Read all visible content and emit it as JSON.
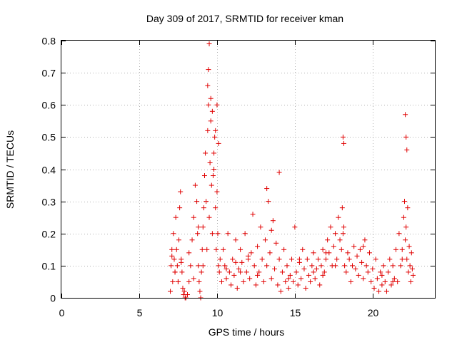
{
  "chart_data": {
    "type": "scatter",
    "title": "Day 309 of 2017, SRMTID for receiver kman",
    "xlabel": "GPS time / hours",
    "ylabel": "SRMTID / TECUs",
    "xlim": [
      0,
      24
    ],
    "ylim": [
      0,
      0.8
    ],
    "xticks": [
      0,
      5,
      10,
      15,
      20
    ],
    "yticks": [
      0,
      0.1,
      0.2,
      0.3,
      0.4,
      0.5,
      0.6,
      0.7,
      0.8
    ],
    "xtick_labels": [
      "0",
      "5",
      "10",
      "15",
      "20"
    ],
    "ytick_labels": [
      "0",
      "0.1",
      "0.2",
      "0.3",
      "0.4",
      "0.5",
      "0.6",
      "0.7",
      "0.8"
    ],
    "grid": true,
    "marker": "+",
    "color": "#e00000",
    "series": [
      {
        "name": "SRMTID",
        "x": [
          7.0,
          7.05,
          7.1,
          7.15,
          7.2,
          7.25,
          7.3,
          7.35,
          7.4,
          7.45,
          7.5,
          7.55,
          7.6,
          7.65,
          7.7,
          7.75,
          7.8,
          7.85,
          7.9,
          7.95,
          8.0,
          8.1,
          8.2,
          8.3,
          8.4,
          8.5,
          8.6,
          8.7,
          8.75,
          8.8,
          8.85,
          8.9,
          8.95,
          9.0,
          9.05,
          9.1,
          9.15,
          9.2,
          9.25,
          9.3,
          9.35,
          9.4,
          9.45,
          9.5,
          9.55,
          9.6,
          9.65,
          9.7,
          9.75,
          9.8,
          9.85,
          9.9,
          9.95,
          10.0,
          10.05,
          10.1,
          10.15,
          10.2,
          10.3,
          10.4,
          10.5,
          10.6,
          10.7,
          10.8,
          10.9,
          11.0,
          11.1,
          11.2,
          11.3,
          11.4,
          11.5,
          11.6,
          11.7,
          11.8,
          11.9,
          12.0,
          12.1,
          12.2,
          12.3,
          12.4,
          12.5,
          12.6,
          12.7,
          12.8,
          12.9,
          13.0,
          13.1,
          13.2,
          13.3,
          13.4,
          13.5,
          13.6,
          13.7,
          13.8,
          13.9,
          14.0,
          14.1,
          14.2,
          14.3,
          14.4,
          14.5,
          14.6,
          14.7,
          14.8,
          14.9,
          15.0,
          15.1,
          15.2,
          15.3,
          15.4,
          15.5,
          15.6,
          15.7,
          15.8,
          15.9,
          16.0,
          16.1,
          16.2,
          16.3,
          16.4,
          16.5,
          16.6,
          16.7,
          16.8,
          16.9,
          17.0,
          17.1,
          17.2,
          17.3,
          17.4,
          17.5,
          17.6,
          17.7,
          17.8,
          17.9,
          18.0,
          18.05,
          18.1,
          18.15,
          18.2,
          18.3,
          18.4,
          18.5,
          18.6,
          18.7,
          18.8,
          18.9,
          19.0,
          19.1,
          19.2,
          19.3,
          19.4,
          19.5,
          19.6,
          19.7,
          19.8,
          19.9,
          20.0,
          20.1,
          20.2,
          20.3,
          20.4,
          20.5,
          20.6,
          20.7,
          20.8,
          20.9,
          21.0,
          21.1,
          21.2,
          21.3,
          21.4,
          21.5,
          21.6,
          21.7,
          21.8,
          21.9,
          22.0,
          22.05,
          22.1,
          22.15,
          22.2,
          22.25,
          22.3,
          22.35,
          22.4,
          22.45,
          22.5,
          22.55,
          22.6,
          7.1,
          7.3,
          7.5,
          7.7,
          9.4,
          9.45,
          9.5,
          9.6,
          9.7,
          9.8,
          9.9,
          10.0,
          10.1,
          13.2,
          14.0,
          18.1,
          18.15,
          22.1,
          22.15,
          22.2,
          8.2,
          8.5,
          8.8,
          9.1,
          11.5,
          12.0,
          12.6,
          13.5,
          14.6,
          15.3,
          16.2,
          17.0,
          17.6,
          19.4,
          20.6,
          21.3,
          21.9,
          10.6,
          11.2,
          16.8
        ],
        "y": [
          0.02,
          0.1,
          0.15,
          0.05,
          0.2,
          0.12,
          0.08,
          0.25,
          0.15,
          0.1,
          0.05,
          0.18,
          0.28,
          0.33,
          0.12,
          0.08,
          0.03,
          0.01,
          0.02,
          0.0,
          0.0,
          0.01,
          0.05,
          0.1,
          0.18,
          0.25,
          0.35,
          0.3,
          0.2,
          0.1,
          0.05,
          0.02,
          0.0,
          0.08,
          0.15,
          0.22,
          0.28,
          0.38,
          0.45,
          0.3,
          0.15,
          0.52,
          0.6,
          0.25,
          0.42,
          0.55,
          0.35,
          0.2,
          0.38,
          0.45,
          0.5,
          0.28,
          0.15,
          0.33,
          0.2,
          0.1,
          0.08,
          0.12,
          0.05,
          0.15,
          0.1,
          0.06,
          0.2,
          0.08,
          0.04,
          0.12,
          0.07,
          0.18,
          0.03,
          0.09,
          0.15,
          0.11,
          0.05,
          0.2,
          0.08,
          0.12,
          0.06,
          0.14,
          0.26,
          0.1,
          0.04,
          0.16,
          0.08,
          0.22,
          0.12,
          0.05,
          0.18,
          0.1,
          0.3,
          0.14,
          0.06,
          0.24,
          0.09,
          0.17,
          0.04,
          0.12,
          0.02,
          0.08,
          0.15,
          0.05,
          0.1,
          0.03,
          0.07,
          0.12,
          0.05,
          0.22,
          0.08,
          0.04,
          0.11,
          0.06,
          0.15,
          0.09,
          0.03,
          0.12,
          0.07,
          0.05,
          0.1,
          0.14,
          0.06,
          0.09,
          0.12,
          0.04,
          0.1,
          0.15,
          0.08,
          0.12,
          0.18,
          0.14,
          0.22,
          0.1,
          0.16,
          0.2,
          0.12,
          0.25,
          0.18,
          0.15,
          0.28,
          0.2,
          0.22,
          0.1,
          0.08,
          0.14,
          0.12,
          0.05,
          0.1,
          0.16,
          0.09,
          0.13,
          0.07,
          0.15,
          0.11,
          0.06,
          0.18,
          0.1,
          0.08,
          0.14,
          0.05,
          0.09,
          0.03,
          0.12,
          0.06,
          0.02,
          0.08,
          0.04,
          0.1,
          0.05,
          0.02,
          0.08,
          0.12,
          0.04,
          0.1,
          0.06,
          0.15,
          0.05,
          0.2,
          0.1,
          0.15,
          0.25,
          0.3,
          0.18,
          0.22,
          0.12,
          0.28,
          0.08,
          0.16,
          0.1,
          0.05,
          0.14,
          0.09,
          0.07,
          0.13,
          0.08,
          0.05,
          0.11,
          0.66,
          0.71,
          0.79,
          0.62,
          0.58,
          0.4,
          0.52,
          0.6,
          0.48,
          0.34,
          0.39,
          0.5,
          0.48,
          0.57,
          0.5,
          0.46,
          0.14,
          0.06,
          0.22,
          0.1,
          0.08,
          0.13,
          0.07,
          0.21,
          0.06,
          0.12,
          0.08,
          0.14,
          0.1,
          0.16,
          0.07,
          0.05,
          0.12,
          0.09,
          0.11,
          0.07
        ]
      }
    ]
  }
}
